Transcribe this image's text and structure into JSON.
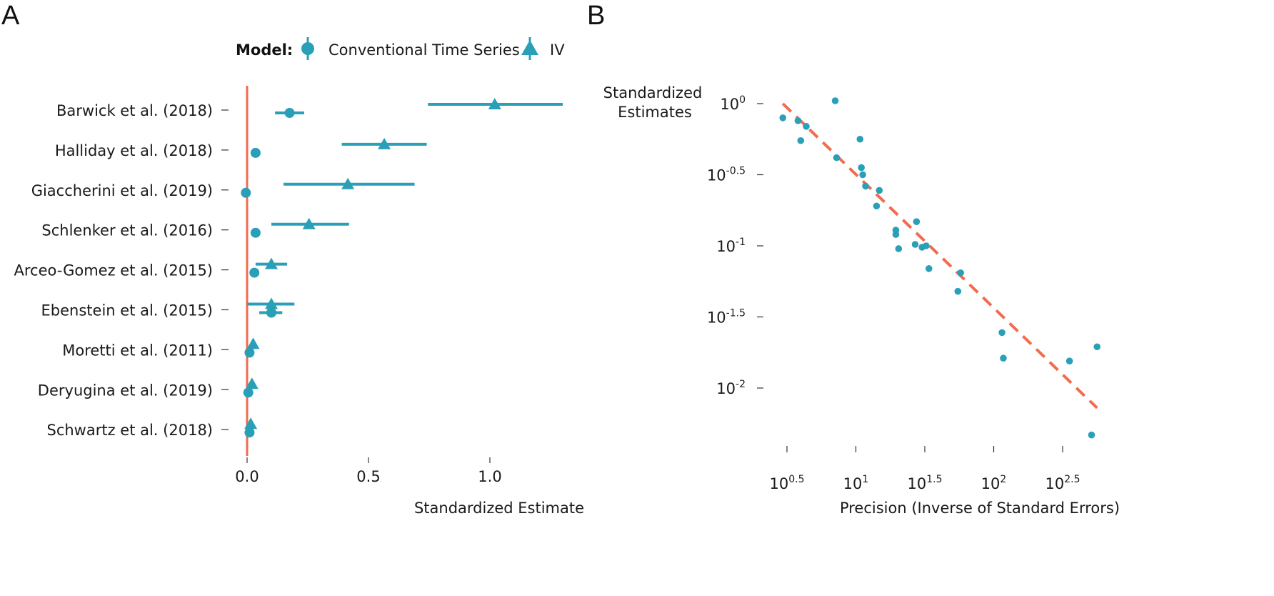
{
  "colors": {
    "series": "#2a9fb8",
    "reference": "#f26b4e",
    "text": "#1a1a1a"
  },
  "chart_data": [
    {
      "panel": "A",
      "type": "scatter",
      "xlabel": "Standardized Estimate",
      "ylabel": "",
      "xlim": [
        -0.03,
        1.35
      ],
      "xticks": [
        "0.0",
        "0.5",
        "1.0"
      ],
      "xtick_values": [
        0,
        0.5,
        1.0
      ],
      "reference_line_x": 0,
      "legend": {
        "title": "Model:",
        "placement": "top",
        "entries": [
          {
            "label": "Conventional Time Series",
            "marker": "circle"
          },
          {
            "label": "IV",
            "marker": "triangle"
          }
        ]
      },
      "categories": [
        "Barwick et al. (2018)",
        "Halliday et al. (2018)",
        "Giaccherini et al. (2019)",
        "Schlenker et al. (2016)",
        "Arceo-Gomez et al. (2015)",
        "Ebenstein et al. (2015)",
        "Moretti et al. (2011)",
        "Deryugina et al. (2019)",
        "Schwartz et al. (2018)"
      ],
      "series": [
        {
          "name": "Conventional Time Series",
          "marker": "circle",
          "values": [
            0.175,
            0.035,
            -0.005,
            0.035,
            0.03,
            0.1,
            0.01,
            0.005,
            0.01
          ],
          "ci_low": [
            0.115,
            null,
            null,
            null,
            null,
            0.05,
            null,
            null,
            null
          ],
          "ci_high": [
            0.235,
            null,
            null,
            null,
            null,
            0.145,
            null,
            null,
            null
          ]
        },
        {
          "name": "IV",
          "marker": "triangle",
          "values": [
            1.02,
            0.565,
            0.415,
            0.255,
            0.1,
            0.1,
            0.025,
            0.02,
            0.015
          ],
          "ci_low": [
            0.745,
            0.39,
            0.15,
            0.1,
            0.035,
            0.0,
            null,
            null,
            null
          ],
          "ci_high": [
            1.3,
            0.74,
            0.69,
            0.42,
            0.165,
            0.195,
            null,
            null,
            null
          ]
        }
      ]
    },
    {
      "panel": "B",
      "type": "scatter",
      "xlabel": "Precision (Inverse of Standard Errors)",
      "ylabel": "Standardized Estimates",
      "xscale": "log",
      "yscale": "log",
      "xlim_log10": [
        0.38,
        2.82
      ],
      "ylim_log10": [
        -2.35,
        0.06
      ],
      "xticks": [
        {
          "base": "10",
          "exp": "0.5"
        },
        {
          "base": "10",
          "exp": "1"
        },
        {
          "base": "10",
          "exp": "1.5"
        },
        {
          "base": "10",
          "exp": "2"
        },
        {
          "base": "10",
          "exp": "2.5"
        }
      ],
      "xtick_log10": [
        0.5,
        1.0,
        1.5,
        2.0,
        2.5
      ],
      "yticks": [
        {
          "base": "10",
          "exp": "0"
        },
        {
          "base": "10",
          "exp": "-0.5"
        },
        {
          "base": "10",
          "exp": "-1"
        },
        {
          "base": "10",
          "exp": "-1.5"
        },
        {
          "base": "10",
          "exp": "-2"
        }
      ],
      "ytick_log10": [
        0,
        -0.5,
        -1.0,
        -1.5,
        -2.0
      ],
      "points_log10": [
        [
          0.47,
          -0.1
        ],
        [
          0.58,
          -0.12
        ],
        [
          0.6,
          -0.26
        ],
        [
          0.64,
          -0.16
        ],
        [
          0.85,
          0.02
        ],
        [
          0.86,
          -0.38
        ],
        [
          1.03,
          -0.25
        ],
        [
          1.04,
          -0.45
        ],
        [
          1.05,
          -0.5
        ],
        [
          1.07,
          -0.58
        ],
        [
          1.15,
          -0.72
        ],
        [
          1.17,
          -0.61
        ],
        [
          1.29,
          -0.89
        ],
        [
          1.29,
          -0.92
        ],
        [
          1.31,
          -1.02
        ],
        [
          1.43,
          -0.99
        ],
        [
          1.44,
          -0.83
        ],
        [
          1.48,
          -1.01
        ],
        [
          1.51,
          -1.0
        ],
        [
          1.53,
          -1.16
        ],
        [
          1.74,
          -1.32
        ],
        [
          1.76,
          -1.19
        ],
        [
          2.06,
          -1.61
        ],
        [
          2.07,
          -1.79
        ],
        [
          2.55,
          -1.81
        ],
        [
          2.71,
          -2.33
        ],
        [
          2.75,
          -1.71
        ]
      ],
      "fit_line_log10": {
        "x": [
          0.47,
          2.75
        ],
        "y": [
          0.0,
          -2.14
        ]
      }
    }
  ]
}
